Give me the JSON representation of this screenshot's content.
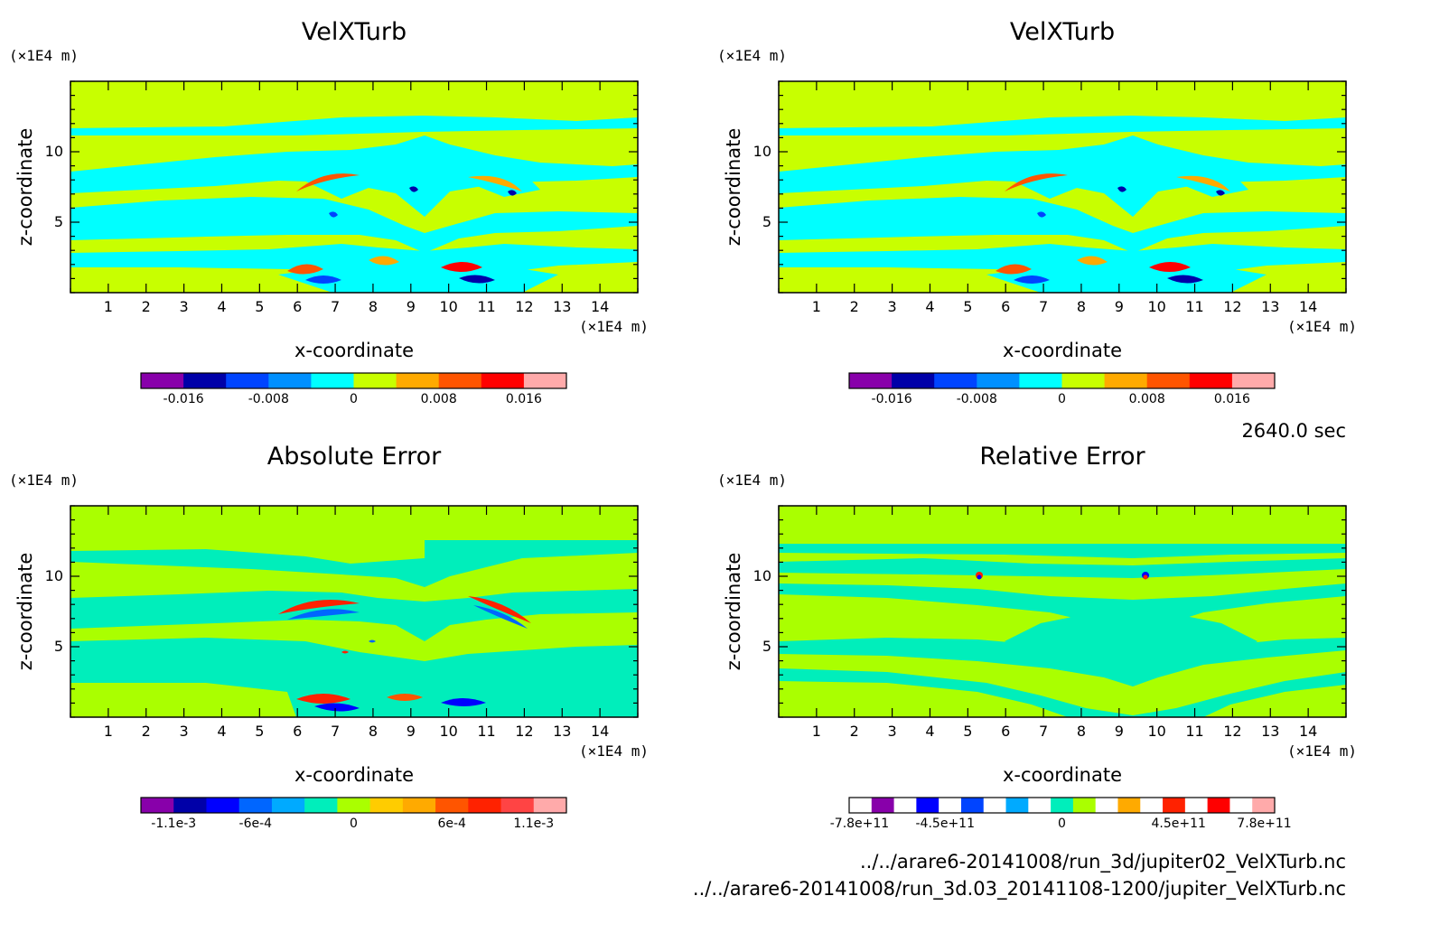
{
  "time_label": "2640.0 sec",
  "files": [
    "../../arare6-20141008/run_3d/jupiter02_VelXTurb.nc",
    "../../arare6-20141008/run_3d.03_20141108-1200/jupiter_VelXTurb.nc"
  ],
  "chart_data": [
    {
      "type": "heatmap",
      "title": "VelXTurb",
      "xlabel": "x-coordinate",
      "ylabel": "z-coordinate",
      "xunit": "(×1E4 m)",
      "yunit": "(×1E4 m)",
      "xlim": [
        0,
        15
      ],
      "ylim": [
        0,
        15
      ],
      "xticks": [
        1,
        2,
        3,
        4,
        5,
        6,
        7,
        8,
        9,
        10,
        11,
        12,
        13,
        14
      ],
      "yticks": [
        5,
        10
      ],
      "colorbar": {
        "colors": [
          "#8800aa",
          "#0000a8",
          "#0044ff",
          "#0090ff",
          "#00ffff",
          "#c8ff00",
          "#ffaa00",
          "#ff5500",
          "#ff0000",
          "#ffaaaa"
        ],
        "ticks": [
          -0.016,
          -0.008,
          0,
          0.008,
          0.016
        ],
        "ticklabels": [
          "-0.016",
          "-0.008",
          "0",
          "0.008",
          "0.016"
        ],
        "range": [
          -0.02,
          0.02
        ]
      },
      "field": {
        "background": "#c8ff00",
        "features": "cyan"
      }
    },
    {
      "type": "heatmap",
      "title": "VelXTurb",
      "xlabel": "x-coordinate",
      "ylabel": "z-coordinate",
      "xunit": "(×1E4 m)",
      "yunit": "(×1E4 m)",
      "xlim": [
        0,
        15
      ],
      "ylim": [
        0,
        15
      ],
      "xticks": [
        1,
        2,
        3,
        4,
        5,
        6,
        7,
        8,
        9,
        10,
        11,
        12,
        13,
        14
      ],
      "yticks": [
        5,
        10
      ],
      "colorbar": {
        "colors": [
          "#8800aa",
          "#0000a8",
          "#0044ff",
          "#0090ff",
          "#00ffff",
          "#c8ff00",
          "#ffaa00",
          "#ff5500",
          "#ff0000",
          "#ffaaaa"
        ],
        "ticks": [
          -0.016,
          -0.008,
          0,
          0.008,
          0.016
        ],
        "ticklabels": [
          "-0.016",
          "-0.008",
          "0",
          "0.008",
          "0.016"
        ],
        "range": [
          -0.02,
          0.02
        ]
      },
      "field": {
        "background": "#c8ff00",
        "features": "cyan"
      }
    },
    {
      "type": "heatmap",
      "title": "Absolute Error",
      "xlabel": "x-coordinate",
      "ylabel": "z-coordinate",
      "xunit": "(×1E4 m)",
      "yunit": "(×1E4 m)",
      "xlim": [
        0,
        15
      ],
      "ylim": [
        0,
        15
      ],
      "xticks": [
        1,
        2,
        3,
        4,
        5,
        6,
        7,
        8,
        9,
        10,
        11,
        12,
        13,
        14
      ],
      "yticks": [
        5,
        10
      ],
      "colorbar": {
        "colors": [
          "#8800aa",
          "#0000a8",
          "#0000ff",
          "#0066ff",
          "#00aaff",
          "#00eebb",
          "#aaff00",
          "#ffcc00",
          "#ffaa00",
          "#ff5500",
          "#ff2200",
          "#ff4444",
          "#ffaaaa"
        ],
        "ticks": [
          -0.0011,
          -0.0006,
          0,
          0.0006,
          0.0011
        ],
        "ticklabels": [
          "-1.1e-3",
          "-6e-4",
          "0",
          "6e-4",
          "1.1e-3"
        ],
        "range": [
          -0.0013,
          0.0013
        ]
      },
      "field": {
        "background": "#aaff00",
        "features": "#00eebb"
      }
    },
    {
      "type": "heatmap",
      "title": "Relative Error",
      "xlabel": "x-coordinate",
      "ylabel": "z-coordinate",
      "xunit": "(×1E4 m)",
      "yunit": "(×1E4 m)",
      "xlim": [
        0,
        15
      ],
      "ylim": [
        0,
        15
      ],
      "xticks": [
        1,
        2,
        3,
        4,
        5,
        6,
        7,
        8,
        9,
        10,
        11,
        12,
        13,
        14
      ],
      "yticks": [
        5,
        10
      ],
      "colorbar": {
        "colors": [
          "#ffffff",
          "#8800aa",
          "#ffffff",
          "#0000ff",
          "#ffffff",
          "#0044ff",
          "#ffffff",
          "#00aaff",
          "#ffffff",
          "#00eebb",
          "#aaff00",
          "#ffffff",
          "#ffaa00",
          "#ffffff",
          "#ff2200",
          "#ffffff",
          "#ff0000",
          "#ffffff",
          "#ffaaaa"
        ],
        "ticks": [
          -780000000000,
          -450000000000,
          0,
          450000000000,
          780000000000
        ],
        "ticklabels": [
          "-7.8e+11",
          "-4.5e+11",
          "0",
          "4.5e+11",
          "7.8e+11"
        ],
        "range": [
          -820000000000,
          820000000000
        ]
      },
      "field": {
        "background": "#aaff00",
        "features": "#00eebb"
      }
    }
  ]
}
